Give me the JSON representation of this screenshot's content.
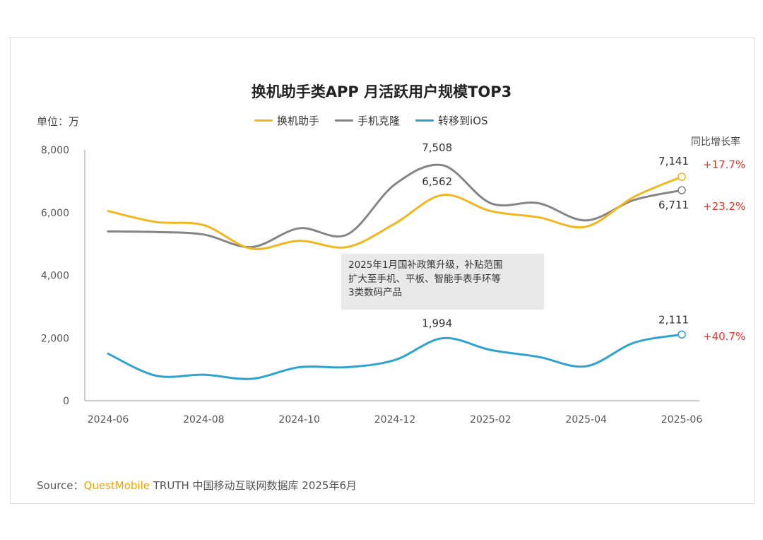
{
  "chart_data": {
    "type": "line",
    "title": "换机助手类APP 月活跃用户规模TOP3",
    "unit_label": "单位：万",
    "yoy_header": "同比增长率",
    "x_tick_labels": [
      "2024-06",
      "2024-08",
      "2024-10",
      "2024-12",
      "2025-02",
      "2025-04",
      "2025-06"
    ],
    "x": [
      "2024-06",
      "2024-07",
      "2024-08",
      "2024-09",
      "2024-10",
      "2024-11",
      "2024-12",
      "2025-01",
      "2025-02",
      "2025-03",
      "2025-04",
      "2025-05",
      "2025-06"
    ],
    "y_ticks": [
      "0",
      "2,000",
      "4,000",
      "6,000",
      "8,000"
    ],
    "ylim": [
      0,
      8000
    ],
    "series": [
      {
        "name": "换机助手",
        "color": "#f2b61e",
        "values": [
          6050,
          5700,
          5600,
          4850,
          5100,
          4900,
          5650,
          6562,
          6050,
          5850,
          5550,
          6500,
          7141
        ],
        "end_label": "7,141",
        "yoy": "+17.7%"
      },
      {
        "name": "手机克隆",
        "color": "#858585",
        "values": [
          5400,
          5380,
          5300,
          4900,
          5500,
          5300,
          6900,
          7508,
          6300,
          6300,
          5750,
          6400,
          6711
        ],
        "end_label": "6,711",
        "yoy": "+23.2%"
      },
      {
        "name": "转移到iOS",
        "color": "#2fa3cf",
        "values": [
          1500,
          800,
          830,
          700,
          1070,
          1070,
          1300,
          1994,
          1620,
          1400,
          1100,
          1850,
          2111
        ],
        "end_label": "2,111",
        "yoy": "+40.7%"
      }
    ],
    "annotations": [
      {
        "text": "7,508",
        "series": 1,
        "index": 7
      },
      {
        "text": "6,562",
        "series": 0,
        "index": 7
      },
      {
        "text": "1,994",
        "series": 2,
        "index": 7
      }
    ],
    "note": {
      "line1": "2025年1月国补政策升级，补贴范围",
      "line2": "扩大至手机、平板、智能手表手环等",
      "line3": "3类数码产品"
    }
  },
  "source": {
    "prefix": "Source：",
    "brand": "QuestMobile",
    "rest": " TRUTH 中国移动互联网数据库 2025年6月"
  }
}
